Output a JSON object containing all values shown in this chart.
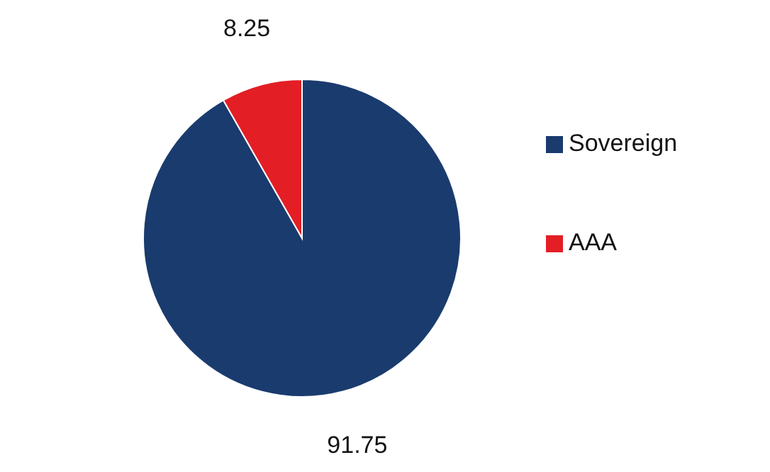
{
  "chart_data": {
    "type": "pie",
    "categories": [
      "Sovereign",
      "AAA"
    ],
    "values": [
      91.75,
      8.25
    ],
    "colors": [
      "#1a3b6e",
      "#e31e25"
    ],
    "data_labels": true,
    "legend": "right"
  }
}
